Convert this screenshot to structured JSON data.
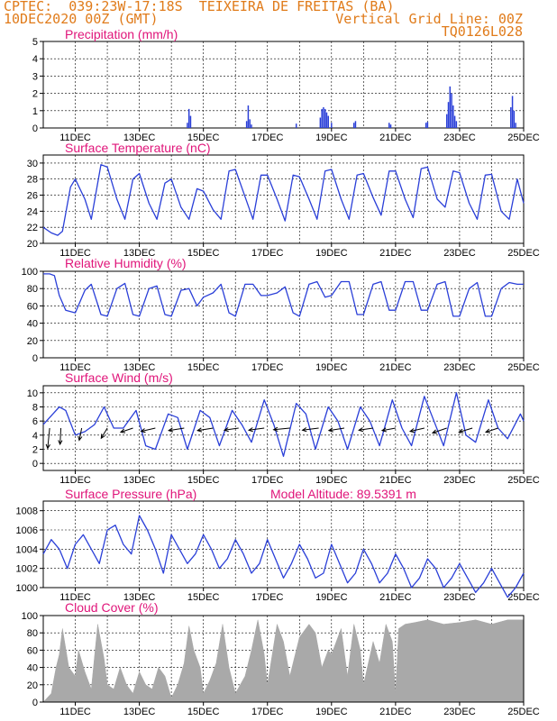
{
  "header": {
    "line1": "CPTEC:  039:23W-17:18S  TEIXEIRA DE FREITAS (BA)",
    "line2_left": "10DEC2020 00Z (GMT)",
    "line2_right": "Vertical Grid Line: 00Z",
    "line3_right": "TQ0126L028"
  },
  "date_labels": [
    "11DEC",
    "13DEC",
    "15DEC",
    "17DEC",
    "19DEC",
    "21DEC",
    "23DEC",
    "25DEC"
  ],
  "colors": {
    "series": "#2a3fd8",
    "title": "#e0157a",
    "header": "#e07b1a",
    "cloud": "#a9a9a9",
    "wind_arrow": "#000000"
  },
  "chart_data": [
    {
      "type": "bar",
      "title": "Precipitation (mm/h)",
      "ylim": [
        0,
        5
      ],
      "yticks": [
        0,
        1,
        2,
        3,
        4,
        5
      ],
      "x_range_days": [
        10,
        25
      ],
      "x": [
        14.5,
        14.55,
        14.6,
        16.35,
        16.4,
        16.45,
        16.5,
        17.9,
        18.65,
        18.7,
        18.75,
        18.8,
        18.85,
        18.9,
        19.0,
        19.7,
        19.75,
        20.8,
        20.85,
        21.95,
        22.0,
        22.6,
        22.65,
        22.7,
        22.75,
        22.8,
        22.85,
        22.9,
        24.6,
        24.65,
        24.7,
        24.75
      ],
      "values": [
        0.3,
        1.1,
        0.7,
        0.4,
        1.3,
        0.5,
        0.2,
        0.25,
        0.6,
        1.1,
        1.2,
        1.1,
        0.9,
        0.7,
        0.3,
        0.3,
        0.4,
        0.3,
        0.2,
        0.3,
        0.35,
        0.8,
        1.5,
        2.4,
        2.0,
        1.3,
        0.7,
        0.4,
        1.2,
        1.85,
        1.0,
        0.3
      ]
    },
    {
      "type": "line",
      "title": "Surface Temperature (nC)",
      "ylim": [
        20,
        31
      ],
      "yticks": [
        20,
        22,
        24,
        26,
        28,
        30
      ],
      "x": [
        10.0,
        10.25,
        10.45,
        10.6,
        10.85,
        11.0,
        11.3,
        11.5,
        11.8,
        12.0,
        12.3,
        12.55,
        12.8,
        13.0,
        13.3,
        13.55,
        13.8,
        14.0,
        14.3,
        14.55,
        14.8,
        15.0,
        15.3,
        15.55,
        15.8,
        16.0,
        16.3,
        16.55,
        16.8,
        17.0,
        17.3,
        17.55,
        17.8,
        18.0,
        18.3,
        18.55,
        18.8,
        19.0,
        19.3,
        19.55,
        19.8,
        20.0,
        20.3,
        20.55,
        20.8,
        21.0,
        21.3,
        21.55,
        21.8,
        22.0,
        22.3,
        22.55,
        22.8,
        23.0,
        23.3,
        23.55,
        23.8,
        24.0,
        24.3,
        24.55,
        24.8,
        25.0
      ],
      "values": [
        22.0,
        21.3,
        21.0,
        21.5,
        27.0,
        28.0,
        25.5,
        23.0,
        29.8,
        29.5,
        25.5,
        23.0,
        28.0,
        28.7,
        25.0,
        23.0,
        27.5,
        28.0,
        24.5,
        23.0,
        26.8,
        26.5,
        24.2,
        23.0,
        29.0,
        29.2,
        25.8,
        23.0,
        28.5,
        28.5,
        25.5,
        22.8,
        28.5,
        28.3,
        25.5,
        23.0,
        29.0,
        29.2,
        25.5,
        23.0,
        28.5,
        28.7,
        25.7,
        23.5,
        29.0,
        29.0,
        25.5,
        23.2,
        29.3,
        29.5,
        25.5,
        24.5,
        29.0,
        28.8,
        25.0,
        23.0,
        28.5,
        28.6,
        24.0,
        23.0,
        28.0,
        25.0
      ]
    },
    {
      "type": "line",
      "title": "Relative Humidity (%)",
      "ylim": [
        0,
        100
      ],
      "yticks": [
        0,
        20,
        40,
        60,
        80,
        100
      ],
      "x": [
        10.0,
        10.2,
        10.35,
        10.5,
        10.7,
        11.0,
        11.3,
        11.5,
        11.8,
        12.0,
        12.3,
        12.55,
        12.8,
        13.0,
        13.3,
        13.55,
        13.8,
        14.0,
        14.3,
        14.55,
        14.8,
        15.0,
        15.3,
        15.55,
        15.8,
        16.0,
        16.3,
        16.55,
        16.8,
        17.0,
        17.3,
        17.55,
        17.8,
        18.0,
        18.3,
        18.55,
        18.8,
        19.0,
        19.3,
        19.55,
        19.8,
        20.0,
        20.3,
        20.55,
        20.8,
        21.0,
        21.3,
        21.55,
        21.8,
        22.0,
        22.3,
        22.55,
        22.8,
        23.0,
        23.3,
        23.55,
        23.8,
        24.0,
        24.3,
        24.55,
        24.8,
        25.0
      ],
      "values": [
        97,
        97,
        95,
        72,
        55,
        52,
        78,
        85,
        50,
        48,
        80,
        86,
        50,
        48,
        80,
        83,
        50,
        48,
        78,
        80,
        60,
        70,
        75,
        85,
        52,
        48,
        85,
        85,
        72,
        72,
        75,
        82,
        52,
        48,
        85,
        88,
        70,
        72,
        88,
        88,
        50,
        50,
        85,
        88,
        55,
        55,
        88,
        88,
        55,
        55,
        85,
        88,
        48,
        48,
        80,
        87,
        48,
        48,
        80,
        87,
        85,
        85
      ]
    },
    {
      "type": "line",
      "title": "Surface Wind (m/s)",
      "ylim": [
        -1,
        11
      ],
      "yticks": [
        0,
        2,
        4,
        6,
        8,
        10
      ],
      "x": [
        10.0,
        10.3,
        10.5,
        10.7,
        11.0,
        11.3,
        11.6,
        11.9,
        12.2,
        12.5,
        12.9,
        13.2,
        13.5,
        13.9,
        14.2,
        14.5,
        14.9,
        15.2,
        15.5,
        15.9,
        16.2,
        16.5,
        16.9,
        17.2,
        17.5,
        17.9,
        18.2,
        18.5,
        18.9,
        19.2,
        19.5,
        19.9,
        20.2,
        20.5,
        20.9,
        21.2,
        21.5,
        21.9,
        22.2,
        22.5,
        22.9,
        23.2,
        23.5,
        23.9,
        24.2,
        24.5,
        24.9,
        25.0
      ],
      "values": [
        5.5,
        7.0,
        8.0,
        7.5,
        4.0,
        4.5,
        5.5,
        8.0,
        5.0,
        5.0,
        7.5,
        2.5,
        2.0,
        7.0,
        6.5,
        2.0,
        7.5,
        6.5,
        2.5,
        7.5,
        5.5,
        3.0,
        9.0,
        5.5,
        1.0,
        8.5,
        7.0,
        2.0,
        8.0,
        6.0,
        2.0,
        8.0,
        6.0,
        2.5,
        9.0,
        5.0,
        2.5,
        9.5,
        6.0,
        2.5,
        10.0,
        4.0,
        3.0,
        9.0,
        5.0,
        3.5,
        7.0,
        6.0
      ],
      "arrows": {
        "x": [
          10.2,
          10.55,
          11.2,
          12.0,
          12.8,
          13.5,
          14.4,
          15.3,
          16.1,
          16.9,
          17.7,
          18.6,
          19.4,
          20.3,
          21.0,
          21.9,
          22.6,
          23.4,
          24.2
        ],
        "u": [
          -0.5,
          -0.2,
          -0.6,
          -1.5,
          -3.0,
          -3.5,
          -3.8,
          -3.8,
          -3.5,
          -3.8,
          -4.0,
          -4.0,
          -3.8,
          -3.5,
          -3.3,
          -3.5,
          -3.5,
          -3.3,
          -3.0
        ],
        "v": [
          -5.0,
          -4.0,
          -3.0,
          -2.5,
          -1.0,
          -0.8,
          -0.6,
          -0.6,
          -0.5,
          -0.5,
          -0.4,
          -0.5,
          -0.6,
          -0.5,
          -0.6,
          -0.8,
          -1.2,
          -1.0,
          -1.0
        ]
      }
    },
    {
      "type": "line",
      "title": "Surface Pressure (hPa)",
      "subtitle": "Model Altitude: 89.5391 m",
      "ylim": [
        1000,
        1009
      ],
      "yticks": [
        1000,
        1002,
        1004,
        1006,
        1008
      ],
      "x": [
        10.0,
        10.25,
        10.5,
        10.75,
        11.0,
        11.25,
        11.5,
        11.75,
        12.0,
        12.25,
        12.5,
        12.75,
        13.0,
        13.25,
        13.5,
        13.75,
        14.0,
        14.25,
        14.5,
        14.75,
        15.0,
        15.25,
        15.5,
        15.75,
        16.0,
        16.25,
        16.5,
        16.75,
        17.0,
        17.25,
        17.5,
        17.75,
        18.0,
        18.25,
        18.5,
        18.75,
        19.0,
        19.25,
        19.5,
        19.75,
        20.0,
        20.25,
        20.5,
        20.75,
        21.0,
        21.25,
        21.5,
        21.75,
        22.0,
        22.25,
        22.5,
        22.75,
        23.0,
        23.25,
        23.5,
        23.75,
        24.0,
        24.25,
        24.5,
        24.75,
        25.0
      ],
      "values": [
        1003.5,
        1005.0,
        1004.0,
        1002.0,
        1004.5,
        1005.5,
        1004.0,
        1002.5,
        1006.0,
        1006.5,
        1004.5,
        1003.5,
        1007.5,
        1006.0,
        1004.0,
        1001.5,
        1005.5,
        1004.0,
        1002.5,
        1003.5,
        1005.5,
        1004.0,
        1002.0,
        1003.0,
        1005.0,
        1003.5,
        1001.5,
        1002.5,
        1005.0,
        1003.0,
        1001.0,
        1002.5,
        1004.5,
        1003.0,
        1001.0,
        1001.5,
        1004.5,
        1002.5,
        1000.5,
        1001.5,
        1004.0,
        1002.5,
        1000.5,
        1001.5,
        1003.5,
        1002.0,
        1000.0,
        1001.0,
        1003.0,
        1002.0,
        1000.0,
        1001.0,
        1002.5,
        1001.0,
        999.5,
        1000.5,
        1002.0,
        1000.5,
        999.0,
        1000.0,
        1001.5
      ]
    },
    {
      "type": "area",
      "title": "Cloud Cover (%)",
      "ylim": [
        0,
        100
      ],
      "yticks": [
        0,
        20,
        40,
        60,
        80,
        100
      ],
      "x": [
        10.0,
        10.25,
        10.4,
        10.5,
        10.6,
        10.8,
        11.0,
        11.1,
        11.3,
        11.5,
        11.7,
        11.9,
        12.0,
        12.2,
        12.4,
        12.6,
        12.8,
        13.0,
        13.2,
        13.4,
        13.6,
        13.8,
        14.0,
        14.2,
        14.4,
        14.55,
        14.7,
        14.9,
        15.0,
        15.2,
        15.4,
        15.6,
        15.8,
        16.0,
        16.3,
        16.5,
        16.7,
        16.9,
        17.0,
        17.3,
        17.5,
        17.7,
        17.9,
        18.0,
        18.3,
        18.5,
        18.7,
        18.9,
        19.0,
        19.3,
        19.5,
        19.7,
        19.9,
        20.0,
        20.3,
        20.5,
        20.7,
        20.9,
        21.0,
        21.1,
        21.3,
        21.6,
        22.0,
        22.5,
        23.0,
        23.5,
        24.0,
        24.5,
        25.0
      ],
      "values": [
        0,
        10,
        40,
        55,
        85,
        40,
        30,
        60,
        35,
        15,
        90,
        50,
        20,
        15,
        40,
        20,
        10,
        35,
        20,
        15,
        40,
        30,
        5,
        20,
        45,
        88,
        60,
        40,
        10,
        25,
        45,
        90,
        40,
        10,
        30,
        60,
        95,
        55,
        20,
        90,
        70,
        30,
        60,
        75,
        90,
        80,
        40,
        60,
        55,
        85,
        30,
        90,
        60,
        20,
        70,
        45,
        90,
        70,
        10,
        85,
        90,
        92,
        95,
        90,
        92,
        95,
        90,
        95,
        95
      ]
    }
  ]
}
